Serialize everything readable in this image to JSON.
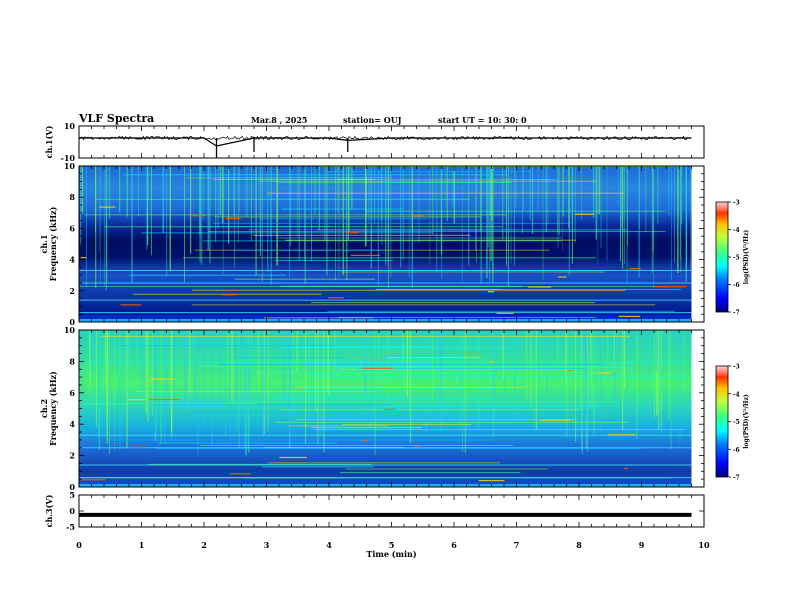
{
  "header": {
    "title": "VLF Spectra",
    "date": "Mar.8 , 2025",
    "station": "station= OUJ",
    "start": "start UT = 10: 30: 0"
  },
  "colors": {
    "spec_low": "#00007f",
    "spec_mid": "#00ff7f",
    "spec_high": "#7f0000",
    "trace": "#000000",
    "frame": "#000000"
  },
  "chart_data": [
    {
      "type": "line",
      "panel": "ch1-waveform",
      "ylabel": "ch.1(V)",
      "ylim": [
        -10,
        10
      ],
      "yticks": [
        "10",
        "-10"
      ],
      "xlim": [
        0,
        10
      ],
      "series": [
        {
          "x": [
            0,
            1,
            2,
            2.2,
            2.8,
            3,
            4,
            4.3,
            5,
            6,
            7,
            8,
            9,
            9.8
          ],
          "values": [
            2.5,
            2.5,
            2.5,
            -2.5,
            2.5,
            2.5,
            2.5,
            1.0,
            2.5,
            2.5,
            2.5,
            2.5,
            2.5,
            2.5
          ]
        }
      ]
    },
    {
      "type": "heatmap",
      "panel": "ch1-spectrogram",
      "ylabel": [
        "ch.1",
        "Frequency (kHz)"
      ],
      "ylim": [
        0,
        10
      ],
      "yticks": [
        "0",
        "2",
        "4",
        "6",
        "8",
        "10"
      ],
      "xlim": [
        0,
        10
      ],
      "data_end_min": 9.8,
      "colorbar": {
        "label": "log(PSD)(V²/Hz)",
        "range": [
          -7,
          -3
        ],
        "ticks": [
          "-3",
          "-4",
          "-5",
          "-6",
          "-7"
        ]
      }
    },
    {
      "type": "heatmap",
      "panel": "ch2-spectrogram",
      "ylabel": [
        "ch.2",
        "Frequency (kHz)"
      ],
      "ylim": [
        0,
        10
      ],
      "yticks": [
        "0",
        "2",
        "4",
        "6",
        "8",
        "10"
      ],
      "xlim": [
        0,
        10
      ],
      "data_end_min": 9.8,
      "colorbar": {
        "label": "log(PSD)(V²/Hz)",
        "range": [
          -7,
          -3
        ],
        "ticks": [
          "-3",
          "-4",
          "-5",
          "-6",
          "-7"
        ]
      }
    },
    {
      "type": "line",
      "panel": "ch3-waveform",
      "ylabel": "ch.3(V)",
      "ylim": [
        -5,
        5
      ],
      "yticks": [
        "5",
        "0",
        "-5"
      ],
      "xlim": [
        0,
        10
      ],
      "series": [
        {
          "x": [
            0,
            9.8
          ],
          "values": [
            -1.2,
            -1.2
          ]
        }
      ]
    }
  ],
  "xaxis": {
    "label": "Time (min)",
    "ticks": [
      "0",
      "1",
      "2",
      "3",
      "4",
      "5",
      "6",
      "7",
      "8",
      "9",
      "10"
    ]
  }
}
